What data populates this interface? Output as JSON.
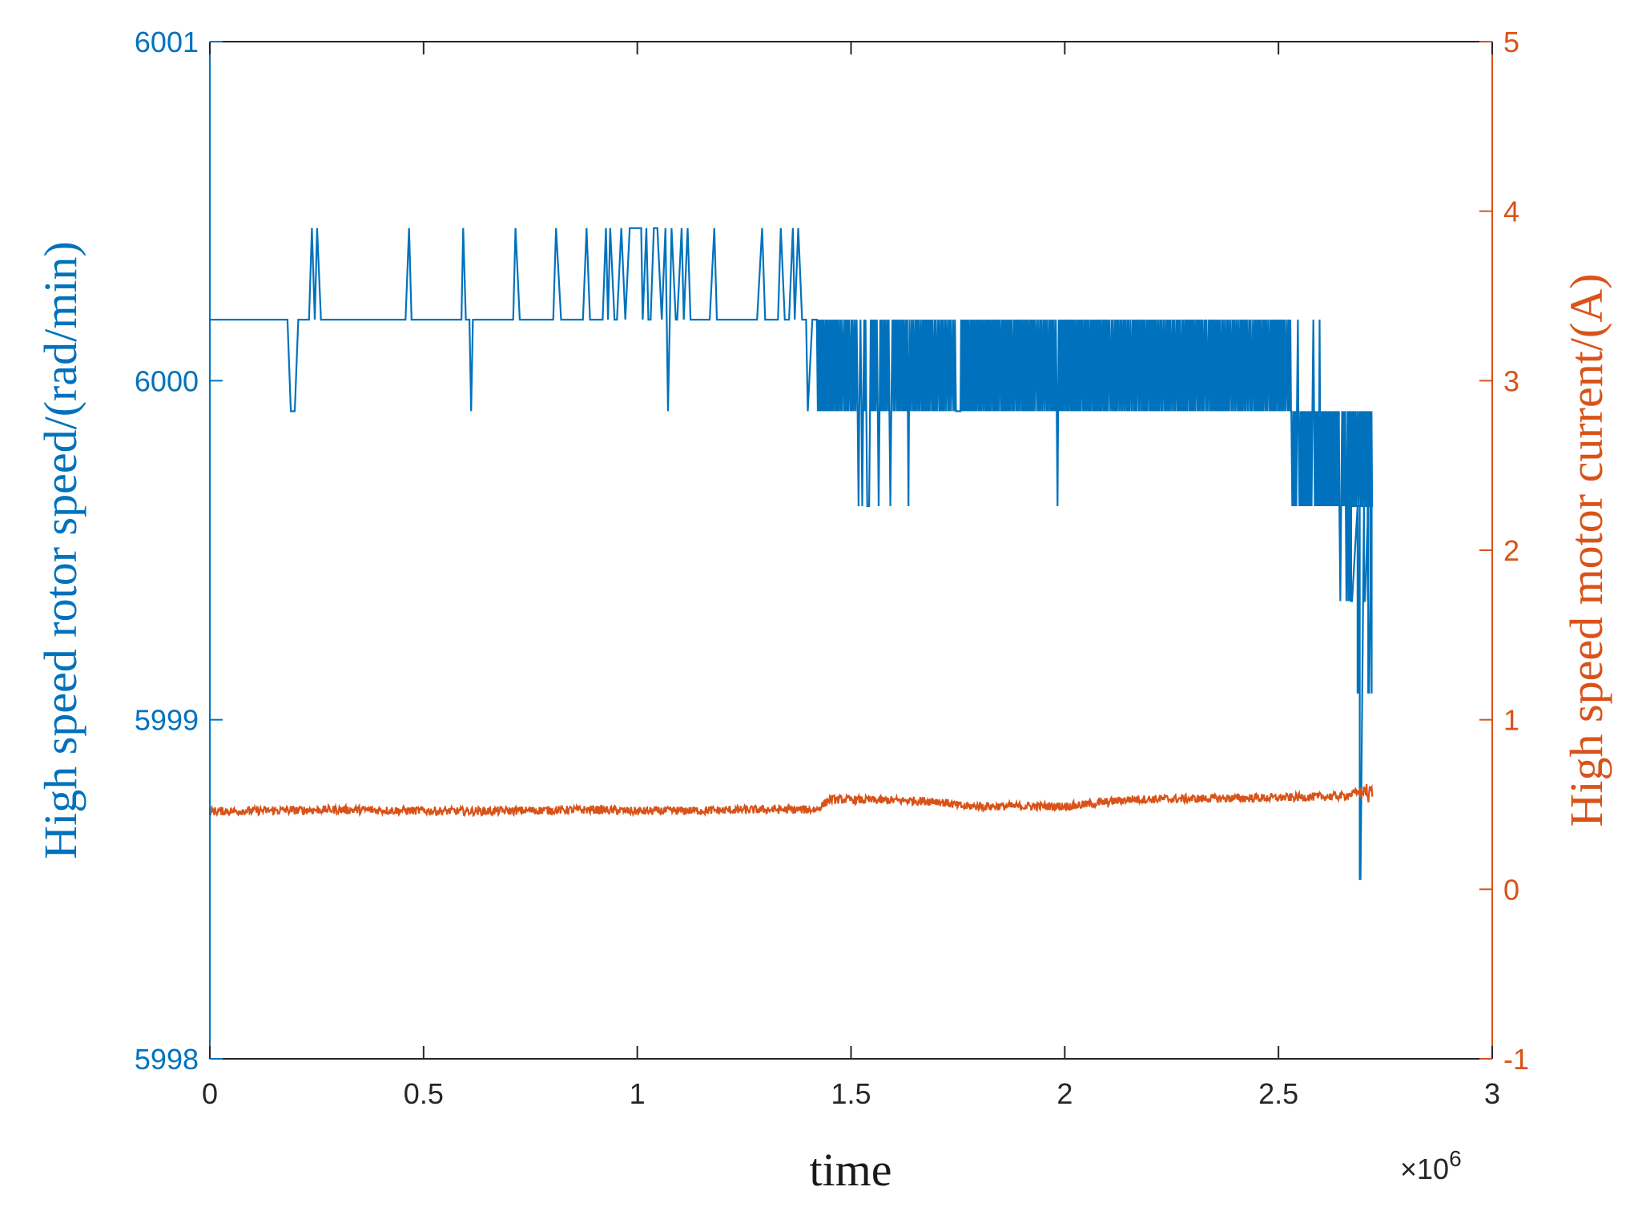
{
  "chart_data": {
    "type": "line",
    "title": "",
    "xlabel": "time",
    "x_exponent_label": "×10",
    "x_exponent_power": "6",
    "xlim": [
      0,
      3000000
    ],
    "x_ticks": [
      0,
      500000,
      1000000,
      1500000,
      2000000,
      2500000,
      3000000
    ],
    "x_tick_labels": [
      "0",
      "0.5",
      "1",
      "1.5",
      "2",
      "2.5",
      "3"
    ],
    "y_left": {
      "label": "High speed rotor speed/(rad/min)",
      "lim": [
        5998,
        6001
      ],
      "ticks": [
        5998,
        5999,
        6000,
        6001
      ],
      "tick_labels": [
        "5998",
        "5999",
        "6000",
        "6001"
      ],
      "color": "#0072bd"
    },
    "y_right": {
      "label": "High speed motor current/(A)",
      "lim": [
        -1,
        5
      ],
      "ticks": [
        -1,
        0,
        1,
        2,
        3,
        4,
        5
      ],
      "tick_labels": [
        "-1",
        "0",
        "1",
        "2",
        "3",
        "4",
        "5"
      ],
      "color": "#d95319"
    },
    "grid": false,
    "series": [
      {
        "axis": "left",
        "color": "#0072bd",
        "style": "step-noise",
        "segments": [
          {
            "x_start": 0,
            "x_end": 1420000,
            "baseline": 6000.18,
            "spike_up": 6000.45,
            "spike_down": 5999.91,
            "dense": [
              [
                870000,
                1050000
              ],
              [
                1050000,
                1130000
              ]
            ]
          },
          {
            "x_start": 1420000,
            "x_end": 2530000,
            "band_low": 5999.91,
            "band_high": 6000.18,
            "spike_down": 5999.63,
            "spike_up": 6000.18
          },
          {
            "x_start": 2530000,
            "x_end": 2720000,
            "band_low": 5999.63,
            "band_high": 5999.91,
            "spike_up": 6000.18,
            "spike_down": 5999.35
          }
        ],
        "end_drops": [
          {
            "x": 2670000,
            "value": 5999.35
          },
          {
            "x": 2685000,
            "value": 5999.08
          },
          {
            "x": 2690000,
            "value": 5998.53
          },
          {
            "x": 2700000,
            "value": 5999.35
          },
          {
            "x": 2710000,
            "value": 5999.08
          },
          {
            "x": 2718000,
            "value": 5999.08
          }
        ]
      },
      {
        "axis": "right",
        "color": "#d95319",
        "style": "noisy-line",
        "points": [
          [
            0,
            0.46
          ],
          [
            300000,
            0.47
          ],
          [
            600000,
            0.46
          ],
          [
            900000,
            0.47
          ],
          [
            1000000,
            0.46
          ],
          [
            1300000,
            0.47
          ],
          [
            1420000,
            0.47
          ],
          [
            1450000,
            0.53
          ],
          [
            1700000,
            0.52
          ],
          [
            1760000,
            0.49
          ],
          [
            2000000,
            0.49
          ],
          [
            2050000,
            0.5
          ],
          [
            2150000,
            0.53
          ],
          [
            2500000,
            0.54
          ],
          [
            2650000,
            0.55
          ],
          [
            2700000,
            0.58
          ],
          [
            2720000,
            0.58
          ]
        ],
        "noise": 0.025
      }
    ]
  }
}
